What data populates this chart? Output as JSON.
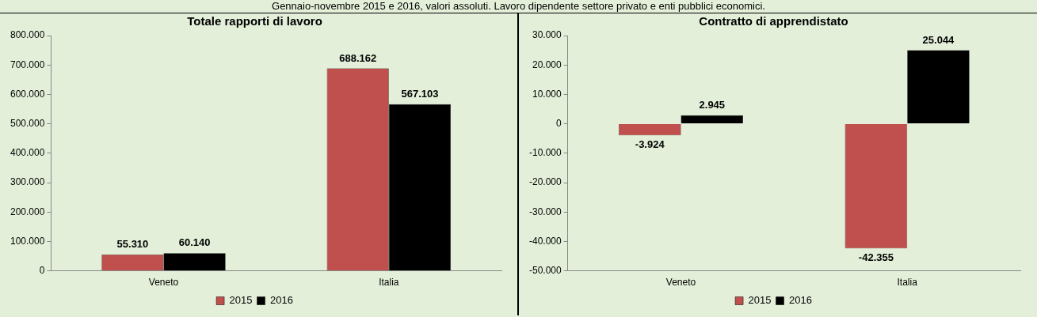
{
  "chart_data": [
    {
      "type": "bar",
      "subtitle": "Gennaio-novembre 2015 e 2016, valori assoluti. Lavoro dipendente settore privato e enti pubblici economici.",
      "title": "Totale rapporti di lavoro",
      "categories": [
        "Veneto",
        "Italia"
      ],
      "series": [
        {
          "name": "2015",
          "color": "#c0504d",
          "values": [
            55310,
            688162
          ],
          "value_labels": [
            "55.310",
            "688.162"
          ]
        },
        {
          "name": "2016",
          "color": "#000000",
          "values": [
            60140,
            567103
          ],
          "value_labels": [
            "60.140",
            "567.103"
          ]
        }
      ],
      "ylim": [
        0,
        800000
      ],
      "yticks": [
        0,
        {
          "value": 100000,
          "label": "100.000"
        },
        {
          "value": 200000,
          "label": "200.000"
        },
        {
          "value": 300000,
          "label": "300.000"
        },
        {
          "value": 400000,
          "label": "400.000"
        },
        {
          "value": 500000,
          "label": "500.000"
        },
        {
          "value": 600000,
          "label": "600.000"
        },
        {
          "value": 700000,
          "label": "700.000"
        },
        {
          "value": 800000,
          "label": "800.000"
        }
      ],
      "grid": false,
      "legend": "bottom"
    },
    {
      "type": "bar",
      "title": "Contratto di apprendistato",
      "categories": [
        "Veneto",
        "Italia"
      ],
      "series": [
        {
          "name": "2015",
          "color": "#c0504d",
          "values": [
            -3924,
            -42355
          ],
          "value_labels": [
            "-3.924",
            "-42.355"
          ]
        },
        {
          "name": "2016",
          "color": "#000000",
          "values": [
            2945,
            25044
          ],
          "value_labels": [
            "2.945",
            "25.044"
          ]
        }
      ],
      "ylim": [
        -50000,
        30000
      ],
      "yticks": [
        {
          "value": -50000,
          "label": "-50.000"
        },
        {
          "value": -40000,
          "label": "-40.000"
        },
        {
          "value": -30000,
          "label": "-30.000"
        },
        {
          "value": -20000,
          "label": "-20.000"
        },
        {
          "value": -10000,
          "label": "-10.000"
        },
        0,
        {
          "value": 10000,
          "label": "10.000"
        },
        {
          "value": 20000,
          "label": "20.000"
        },
        {
          "value": 30000,
          "label": "30.000"
        }
      ],
      "grid": false,
      "legend": "bottom"
    }
  ]
}
